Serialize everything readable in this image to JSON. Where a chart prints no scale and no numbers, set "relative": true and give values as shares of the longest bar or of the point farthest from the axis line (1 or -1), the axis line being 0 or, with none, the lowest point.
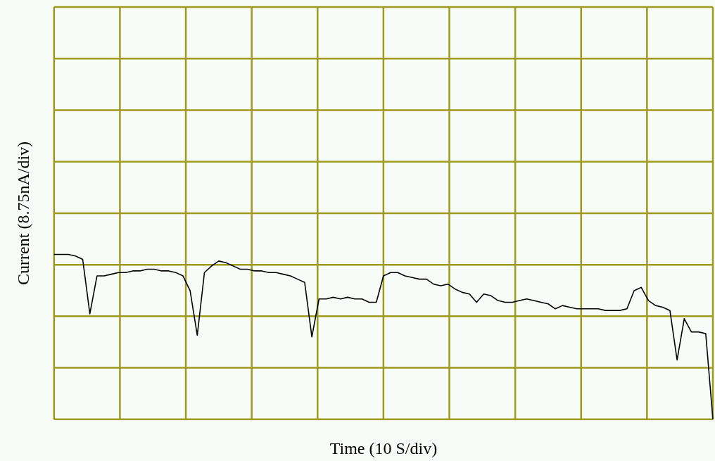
{
  "chart_data": {
    "type": "line",
    "relative": true,
    "xlabel": "Time (10 S/div)",
    "ylabel": "Current (8.75nA/div)",
    "grid": true,
    "legend": false,
    "categories": [
      null,
      null,
      null,
      null,
      null,
      null,
      null,
      null,
      null,
      null,
      null,
      null,
      null,
      null,
      null,
      null,
      null,
      null,
      null,
      null,
      null,
      null,
      null,
      null,
      null,
      null,
      null,
      null,
      null,
      null,
      null,
      null,
      null,
      null,
      null,
      null,
      null,
      null,
      null,
      null,
      null,
      null,
      null,
      null,
      null,
      null,
      null,
      null,
      null,
      null,
      null,
      null,
      null,
      null,
      null,
      null,
      null,
      null,
      null,
      null,
      null,
      null,
      null,
      null,
      null,
      null,
      null,
      null,
      null,
      null,
      null,
      null,
      null,
      null,
      null,
      null,
      null,
      null,
      null,
      null,
      null,
      null,
      null,
      null,
      null,
      null,
      null,
      null,
      null,
      null,
      null,
      null,
      null
    ],
    "series": [
      {
        "color": "#000000",
        "values": [
          1.0,
          1.0,
          1.0,
          0.99,
          0.97,
          0.64,
          0.87,
          0.87,
          0.88,
          0.89,
          0.89,
          0.9,
          0.9,
          0.91,
          0.91,
          0.9,
          0.9,
          0.89,
          0.87,
          0.78,
          0.51,
          0.89,
          0.93,
          0.96,
          0.95,
          0.93,
          0.91,
          0.91,
          0.9,
          0.9,
          0.89,
          0.89,
          0.88,
          0.87,
          0.85,
          0.83,
          0.5,
          0.73,
          0.73,
          0.74,
          0.73,
          0.74,
          0.73,
          0.73,
          0.71,
          0.71,
          0.87,
          0.89,
          0.89,
          0.87,
          0.86,
          0.85,
          0.85,
          0.82,
          0.81,
          0.82,
          0.79,
          0.77,
          0.76,
          0.71,
          0.76,
          0.75,
          0.72,
          0.71,
          0.71,
          0.72,
          0.73,
          0.72,
          0.71,
          0.7,
          0.67,
          0.69,
          0.68,
          0.67,
          0.67,
          0.67,
          0.67,
          0.66,
          0.66,
          0.66,
          0.67,
          0.78,
          0.8,
          0.72,
          0.69,
          0.68,
          0.66,
          0.36,
          0.61,
          0.53,
          0.53,
          0.52,
          0
        ]
      }
    ]
  }
}
